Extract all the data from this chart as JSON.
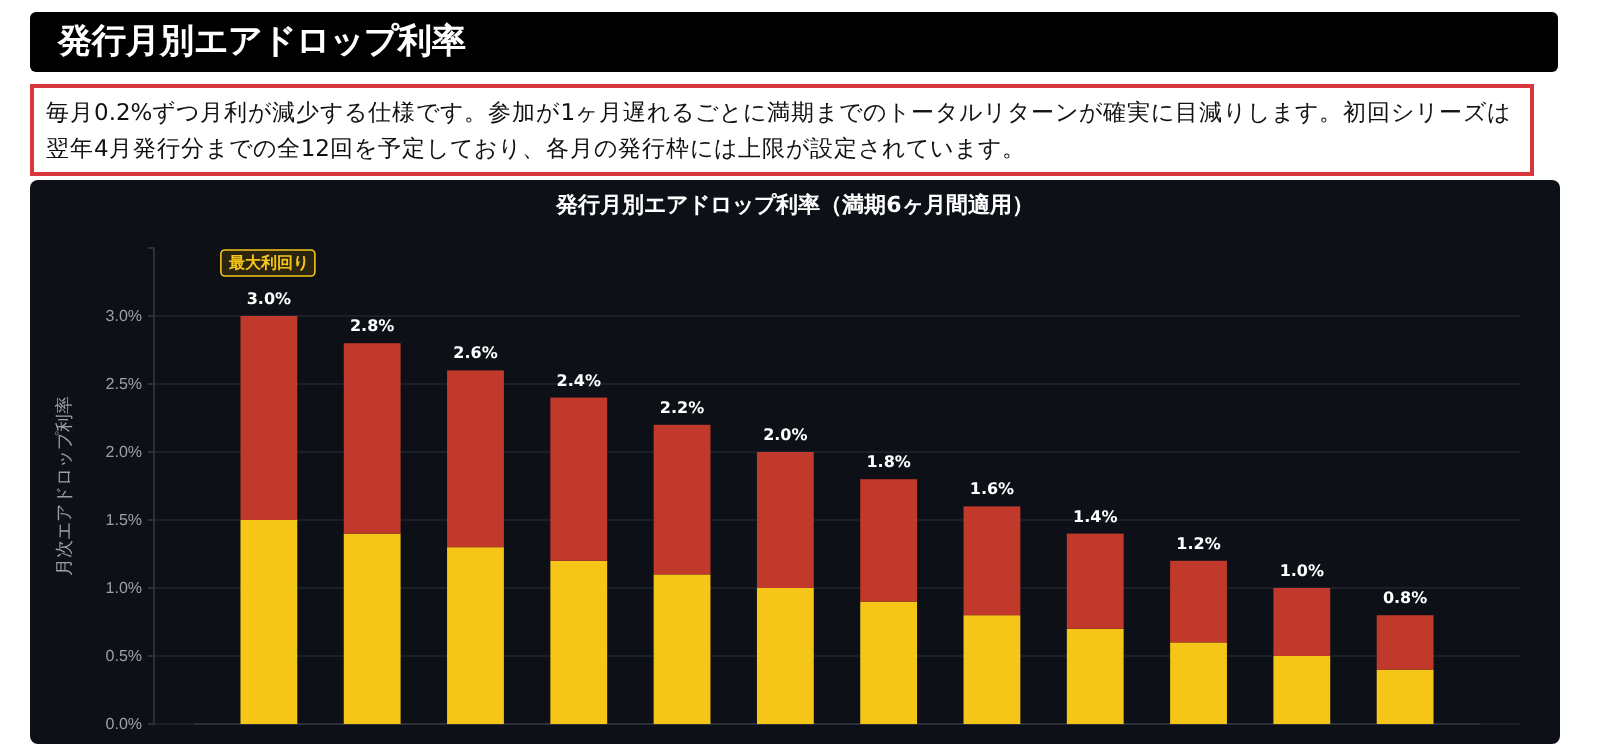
{
  "chart_data": {
    "type": "bar",
    "title": "発行月別エアドロップ利率（満期6ヶ月間適用）",
    "ylabel": "月次エアドロップ利率",
    "stacked": true,
    "categories": [
      null,
      null,
      null,
      null,
      null,
      null,
      null,
      null,
      null,
      null,
      null,
      null
    ],
    "series": [
      {
        "color": "#f5c518",
        "values": [
          1.5,
          1.4,
          1.3,
          1.2,
          1.1,
          1.0,
          0.9,
          0.8,
          0.7,
          0.6,
          0.5,
          0.4
        ]
      },
      {
        "color": "#c0392b",
        "values": [
          1.5,
          1.4,
          1.3,
          1.2,
          1.1,
          1.0,
          0.9,
          0.8,
          0.7,
          0.6,
          0.5,
          0.4
        ]
      }
    ],
    "totals": [
      "3.0%",
      "2.8%",
      "2.6%",
      "2.4%",
      "2.2%",
      "2.0%",
      "1.8%",
      "1.6%",
      "1.4%",
      "1.2%",
      "1.0%",
      "0.8%"
    ],
    "ylim": [
      0,
      3.5
    ],
    "yticks": [
      {
        "value": 0,
        "label": "0.0%"
      },
      {
        "value": 0.5,
        "label": "0.5%"
      },
      {
        "value": 1,
        "label": "1.0%"
      },
      {
        "value": 1.5,
        "label": "1.5%"
      },
      {
        "value": 2,
        "label": "2.0%"
      },
      {
        "value": 2.5,
        "label": "2.5%"
      },
      {
        "value": 3,
        "label": "3.0%"
      }
    ],
    "grid": "y",
    "annotations": [
      "発行月別エアドロップ利率",
      "毎月0.2%ずつ月利が減少する仕様です。参加が1ヶ月遅れるごとに満期までのトータルリターンが確実に目減りします。初回シリーズは翌年4月発行分までの全12回を予定しており、各月の発行枠には上限が設定されています。",
      {
        "text": "最大利回り",
        "y": 3.0
      }
    ]
  }
}
